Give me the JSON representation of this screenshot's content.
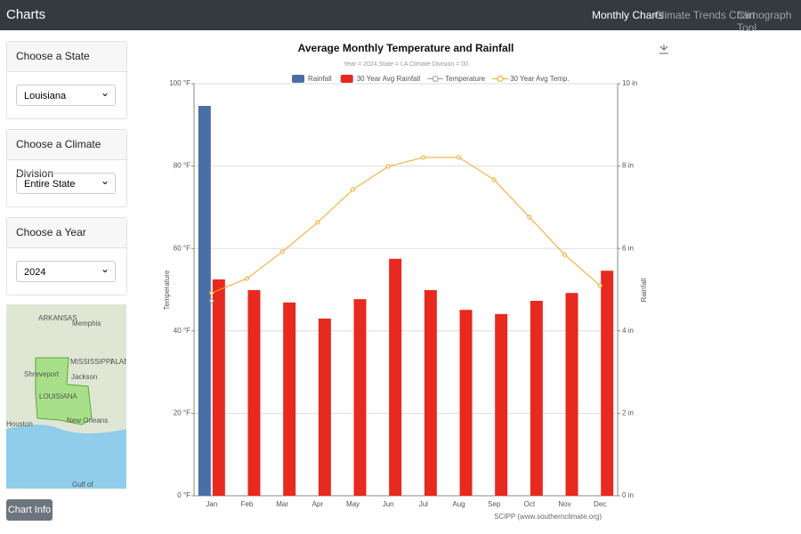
{
  "navbar": {
    "brand": "Charts",
    "links": [
      "Monthly Charts",
      "Climate Trends Chart",
      "Climograph Tool"
    ]
  },
  "sidebar": {
    "cards": [
      {
        "title": "Choose a State",
        "value": "Louisiana"
      },
      {
        "title": "Choose a Climate Division",
        "value": "Entire State"
      },
      {
        "title": "Choose a Year",
        "value": "2024"
      }
    ],
    "button": "Chart Info"
  },
  "map": {
    "labels": [
      "ARKANSAS",
      "Memphis",
      "MISSISSIPPI",
      "ALABA",
      "Shreveport",
      "Jackson",
      "LOUISIANA",
      "Houston",
      "New Orleans",
      "Gulf of"
    ]
  },
  "chart_data": {
    "type": "bar",
    "title": "Average Monthly Temperature and Rainfall",
    "subtitle": "Year = 2024 State = LA Climate Division = 00",
    "credit": "SCIPP (www.southernclimate.org)",
    "y_label": "Temperature",
    "y2_label": "Rainfall",
    "categories": [
      "Jan",
      "Feb",
      "Mar",
      "Apr",
      "May",
      "Jun",
      "Jul",
      "Aug",
      "Sep",
      "Oct",
      "Nov",
      "Dec"
    ],
    "series": [
      {
        "name": "Rainfall",
        "type": "bar",
        "axis": "y2",
        "color": "#4a6fa5",
        "values": [
          9.46,
          null,
          null,
          null,
          null,
          null,
          null,
          null,
          null,
          null,
          null,
          null
        ]
      },
      {
        "name": "30 Year Avg Rainfall",
        "type": "bar",
        "axis": "y2",
        "color": "#e8291f",
        "values": [
          5.25,
          4.99,
          4.69,
          4.3,
          4.77,
          5.75,
          4.99,
          4.51,
          4.41,
          4.73,
          4.92,
          5.46
        ]
      },
      {
        "name": "Temperature",
        "type": "line",
        "axis": "y",
        "color": "#9a9a9a",
        "values": [
          47.3,
          null,
          null,
          null,
          null,
          null,
          null,
          null,
          null,
          null,
          null,
          null
        ]
      },
      {
        "name": "30 Year Avg Temp.",
        "type": "line",
        "axis": "y",
        "color": "#f5a623",
        "values": [
          49.2,
          52.7,
          59.2,
          66.3,
          74.3,
          79.9,
          82.1,
          82.1,
          76.7,
          67.6,
          58.5,
          51.0
        ]
      }
    ],
    "ylim": [
      0,
      100
    ],
    "yticks": [
      {
        "value": 0,
        "label": "0 °F"
      },
      {
        "value": 20,
        "label": "20 °F"
      },
      {
        "value": 40,
        "label": "40 °F"
      },
      {
        "value": 60,
        "label": "60 °F"
      },
      {
        "value": 80,
        "label": "80 °F"
      },
      {
        "value": 100,
        "label": "100 °F"
      }
    ],
    "y2lim": [
      0,
      10
    ],
    "y2ticks": [
      {
        "value": 0,
        "label": "0 in"
      },
      {
        "value": 2,
        "label": "2 in"
      },
      {
        "value": 4,
        "label": "4 in"
      },
      {
        "value": 6,
        "label": "6 in"
      },
      {
        "value": 8,
        "label": "8 in"
      },
      {
        "value": 10,
        "label": "10 in"
      }
    ],
    "grid": true
  }
}
